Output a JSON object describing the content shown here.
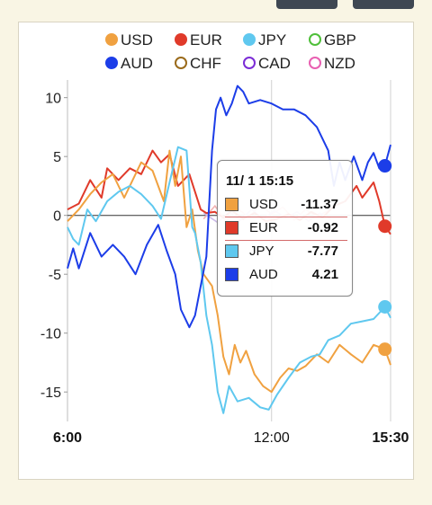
{
  "chart_data": {
    "type": "line",
    "x_ticks": [
      {
        "label": "6:00",
        "t": 0,
        "bold": true
      },
      {
        "label": "12:00",
        "t": 360,
        "bold": false
      },
      {
        "label": "15:30",
        "t": 570,
        "bold": true
      }
    ],
    "x_range_minutes": [
      0,
      570
    ],
    "ylim": [
      -17.5,
      11.5
    ],
    "y_ticks": [
      10,
      5,
      0,
      -5,
      -10,
      -15
    ],
    "grid": true,
    "legend_position": "top",
    "series": [
      {
        "name": "USD",
        "color": "#f0a140",
        "style": "filled",
        "points": [
          [
            0,
            -0.5
          ],
          [
            20,
            0.5
          ],
          [
            40,
            1.8
          ],
          [
            60,
            2.8
          ],
          [
            80,
            3.5
          ],
          [
            100,
            1.5
          ],
          [
            130,
            4.5
          ],
          [
            150,
            3.8
          ],
          [
            170,
            1.2
          ],
          [
            180,
            5.5
          ],
          [
            190,
            2.5
          ],
          [
            200,
            5
          ],
          [
            210,
            -1
          ],
          [
            220,
            0.5
          ],
          [
            230,
            -3
          ],
          [
            240,
            -5
          ],
          [
            255,
            -6
          ],
          [
            265,
            -8.5
          ],
          [
            275,
            -12
          ],
          [
            285,
            -13.5
          ],
          [
            295,
            -11
          ],
          [
            305,
            -12.5
          ],
          [
            315,
            -11.5
          ],
          [
            330,
            -13.5
          ],
          [
            345,
            -14.5
          ],
          [
            360,
            -15
          ],
          [
            375,
            -13.8
          ],
          [
            390,
            -13
          ],
          [
            405,
            -13.2
          ],
          [
            420,
            -12.8
          ],
          [
            440,
            -11.8
          ],
          [
            460,
            -12.5
          ],
          [
            480,
            -11
          ],
          [
            500,
            -11.8
          ],
          [
            520,
            -12.5
          ],
          [
            540,
            -11
          ],
          [
            560,
            -11.37
          ],
          [
            570,
            -12.7
          ]
        ]
      },
      {
        "name": "EUR",
        "color": "#e03a2a",
        "style": "filled",
        "points": [
          [
            0,
            0.5
          ],
          [
            20,
            1
          ],
          [
            40,
            3
          ],
          [
            60,
            1.5
          ],
          [
            70,
            4
          ],
          [
            90,
            3
          ],
          [
            110,
            4
          ],
          [
            130,
            3.5
          ],
          [
            150,
            5.5
          ],
          [
            165,
            4.5
          ],
          [
            180,
            5.2
          ],
          [
            195,
            2.5
          ],
          [
            215,
            3.5
          ],
          [
            235,
            0.5
          ],
          [
            245,
            0.2
          ],
          [
            260,
            0.3
          ],
          [
            275,
            -0.2
          ],
          [
            290,
            0.4
          ],
          [
            310,
            -0.3
          ],
          [
            330,
            0.2
          ],
          [
            350,
            -0.5
          ],
          [
            370,
            -0.3
          ],
          [
            390,
            0.1
          ],
          [
            410,
            -0.4
          ],
          [
            430,
            0.3
          ],
          [
            450,
            -0.2
          ],
          [
            470,
            0.8
          ],
          [
            490,
            1.2
          ],
          [
            510,
            2.5
          ],
          [
            520,
            1.5
          ],
          [
            540,
            2.8
          ],
          [
            550,
            1.2
          ],
          [
            560,
            -0.92
          ],
          [
            570,
            -1.6
          ]
        ]
      },
      {
        "name": "JPY",
        "color": "#5fc8ef",
        "style": "filled",
        "points": [
          [
            0,
            -1
          ],
          [
            10,
            -2
          ],
          [
            20,
            -2.5
          ],
          [
            35,
            0.5
          ],
          [
            50,
            -0.5
          ],
          [
            70,
            1.2
          ],
          [
            90,
            2
          ],
          [
            110,
            2.5
          ],
          [
            130,
            1.8
          ],
          [
            150,
            0.8
          ],
          [
            165,
            -0.3
          ],
          [
            180,
            2.8
          ],
          [
            195,
            5.8
          ],
          [
            210,
            5.5
          ],
          [
            220,
            -1
          ],
          [
            225,
            -1.5
          ],
          [
            235,
            -4
          ],
          [
            245,
            -8.5
          ],
          [
            255,
            -11
          ],
          [
            265,
            -15
          ],
          [
            275,
            -16.8
          ],
          [
            285,
            -14.5
          ],
          [
            300,
            -15.8
          ],
          [
            320,
            -15.5
          ],
          [
            340,
            -16.3
          ],
          [
            355,
            -16.5
          ],
          [
            370,
            -15.2
          ],
          [
            390,
            -13.8
          ],
          [
            410,
            -12.5
          ],
          [
            430,
            -12
          ],
          [
            445,
            -11.8
          ],
          [
            460,
            -10.6
          ],
          [
            480,
            -10.2
          ],
          [
            500,
            -9.2
          ],
          [
            520,
            -9
          ],
          [
            540,
            -8.8
          ],
          [
            560,
            -7.77
          ],
          [
            570,
            -8.7
          ]
        ]
      },
      {
        "name": "GBP",
        "color": "#4fbf3a",
        "style": "hollow",
        "points": []
      },
      {
        "name": "AUD",
        "color": "#1c3de8",
        "style": "filled",
        "points": [
          [
            0,
            -4.5
          ],
          [
            10,
            -2.8
          ],
          [
            20,
            -4.5
          ],
          [
            40,
            -1.5
          ],
          [
            60,
            -3.5
          ],
          [
            80,
            -2.5
          ],
          [
            100,
            -3.5
          ],
          [
            120,
            -5
          ],
          [
            140,
            -2.5
          ],
          [
            160,
            -0.8
          ],
          [
            175,
            -3
          ],
          [
            190,
            -5
          ],
          [
            200,
            -8
          ],
          [
            215,
            -9.5
          ],
          [
            225,
            -8.5
          ],
          [
            235,
            -6
          ],
          [
            245,
            -3.5
          ],
          [
            255,
            5.5
          ],
          [
            262,
            9
          ],
          [
            270,
            10
          ],
          [
            280,
            8.5
          ],
          [
            290,
            9.5
          ],
          [
            300,
            11
          ],
          [
            310,
            10.5
          ],
          [
            320,
            9.5
          ],
          [
            340,
            9.8
          ],
          [
            360,
            9.5
          ],
          [
            380,
            9
          ],
          [
            400,
            9
          ],
          [
            420,
            8.5
          ],
          [
            440,
            7.5
          ],
          [
            460,
            5.5
          ],
          [
            470,
            2.5
          ],
          [
            480,
            4.5
          ],
          [
            490,
            3
          ],
          [
            505,
            5
          ],
          [
            520,
            3
          ],
          [
            530,
            4.5
          ],
          [
            540,
            5.3
          ],
          [
            550,
            4
          ],
          [
            560,
            4.21
          ],
          [
            570,
            6
          ]
        ]
      },
      {
        "name": "CHF",
        "color": "#9a6a1a",
        "style": "hollow",
        "points": []
      },
      {
        "name": "CAD",
        "color": "#7b2cd6",
        "style": "hollow",
        "points": []
      },
      {
        "name": "NZD",
        "color": "#e85fb1",
        "style": "hollow",
        "points": []
      }
    ],
    "tooltip": {
      "title": "11/ 1 15:15",
      "rows": [
        {
          "name": "USD",
          "value": "-11.37",
          "color": "#f0a140"
        },
        {
          "name": "EUR",
          "value": "-0.92",
          "color": "#e03a2a"
        },
        {
          "name": "JPY",
          "value": "-7.77",
          "color": "#5fc8ef"
        },
        {
          "name": "AUD",
          "value": "4.21",
          "color": "#1c3de8"
        }
      ]
    },
    "background_series": [
      {
        "color": "#f3b4b4",
        "points": [
          [
            240,
            -0.3
          ],
          [
            260,
            0.8
          ],
          [
            280,
            -0.5
          ],
          [
            300,
            0.6
          ],
          [
            320,
            -0.2
          ],
          [
            340,
            0.9
          ],
          [
            360,
            0.1
          ],
          [
            380,
            0.7
          ],
          [
            400,
            -0.4
          ],
          [
            420,
            0.5
          ],
          [
            440,
            -0.1
          ],
          [
            460,
            0.4
          ]
        ]
      },
      {
        "color": "#cdbbe8",
        "points": [
          [
            240,
            0.2
          ],
          [
            265,
            -0.6
          ],
          [
            285,
            0.3
          ],
          [
            305,
            -0.4
          ],
          [
            325,
            0.5
          ],
          [
            345,
            -0.3
          ],
          [
            365,
            0.4
          ],
          [
            385,
            -0.2
          ],
          [
            405,
            0.3
          ],
          [
            425,
            -0.5
          ],
          [
            445,
            0.2
          ],
          [
            465,
            -0.3
          ]
        ]
      }
    ]
  }
}
